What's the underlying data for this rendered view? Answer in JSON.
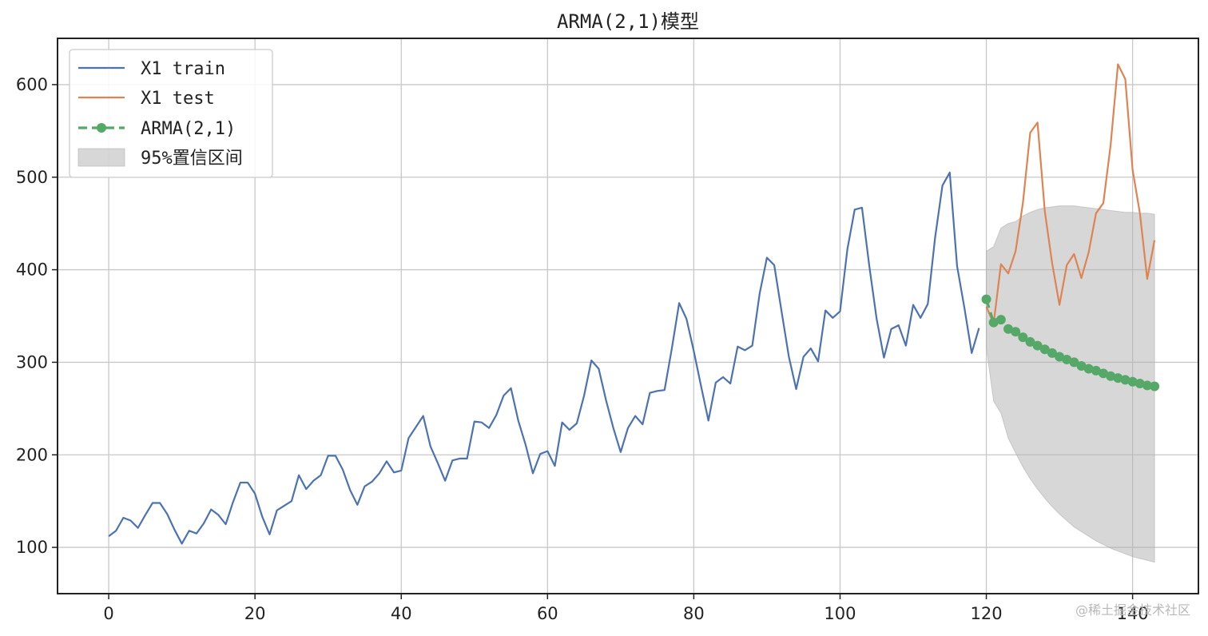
{
  "chart_data": {
    "type": "line",
    "title": "ARMA(2,1)模型",
    "xlim": [
      -7,
      149
    ],
    "ylim": [
      50,
      650
    ],
    "xticks": [
      0,
      20,
      40,
      60,
      80,
      100,
      120,
      140
    ],
    "yticks": [
      100,
      200,
      300,
      400,
      500,
      600
    ],
    "grid": true,
    "legend_position": "top-left",
    "series": [
      {
        "name": "X1 train",
        "color": "#4c72b0",
        "x_start": 0,
        "values": [
          112,
          118,
          132,
          129,
          121,
          135,
          148,
          148,
          136,
          119,
          104,
          118,
          115,
          126,
          141,
          135,
          125,
          149,
          170,
          170,
          158,
          133,
          114,
          140,
          145,
          150,
          178,
          163,
          172,
          178,
          199,
          199,
          184,
          162,
          146,
          166,
          171,
          180,
          193,
          181,
          183,
          218,
          230,
          242,
          209,
          191,
          172,
          194,
          196,
          196,
          236,
          235,
          229,
          243,
          264,
          272,
          237,
          211,
          180,
          201,
          204,
          188,
          235,
          227,
          234,
          264,
          302,
          293,
          259,
          229,
          203,
          229,
          242,
          233,
          267,
          269,
          270,
          315,
          364,
          347,
          312,
          274,
          237,
          278,
          284,
          277,
          317,
          313,
          318,
          374,
          413,
          405,
          355,
          306,
          271,
          306,
          315,
          301,
          356,
          348,
          355,
          422,
          465,
          467,
          404,
          347,
          305,
          336,
          340,
          318,
          362,
          348,
          363,
          435,
          491,
          505,
          404,
          359,
          310,
          337
        ]
      },
      {
        "name": "X1 test",
        "color": "#dd8452",
        "x_start": 120,
        "values": [
          360,
          342,
          406,
          396,
          420,
          472,
          548,
          559,
          463,
          407,
          362,
          405,
          417,
          391,
          419,
          461,
          472,
          535,
          622,
          606,
          508,
          461,
          390,
          432
        ]
      },
      {
        "name": "ARMA(2,1)",
        "color": "#55a868",
        "x_start": 120,
        "values": [
          368,
          343,
          346,
          336,
          333,
          327,
          322,
          318,
          314,
          310,
          306,
          303,
          300,
          296,
          293,
          291,
          288,
          285,
          283,
          281,
          279,
          277,
          275,
          274
        ]
      }
    ],
    "confidence_band": {
      "name": "95%置信区间",
      "color": "#b0b0b0",
      "x_start": 120,
      "upper": [
        420,
        425,
        445,
        450,
        452,
        458,
        462,
        465,
        467,
        468,
        469,
        469,
        469,
        468,
        467,
        466,
        465,
        464,
        463,
        462,
        462,
        461,
        461,
        460
      ],
      "lower": [
        316,
        258,
        245,
        218,
        202,
        187,
        174,
        163,
        153,
        144,
        136,
        129,
        122,
        117,
        112,
        107,
        103,
        99,
        96,
        93,
        90,
        88,
        86,
        84
      ]
    }
  },
  "watermark": "@稀土掘金技术社区"
}
